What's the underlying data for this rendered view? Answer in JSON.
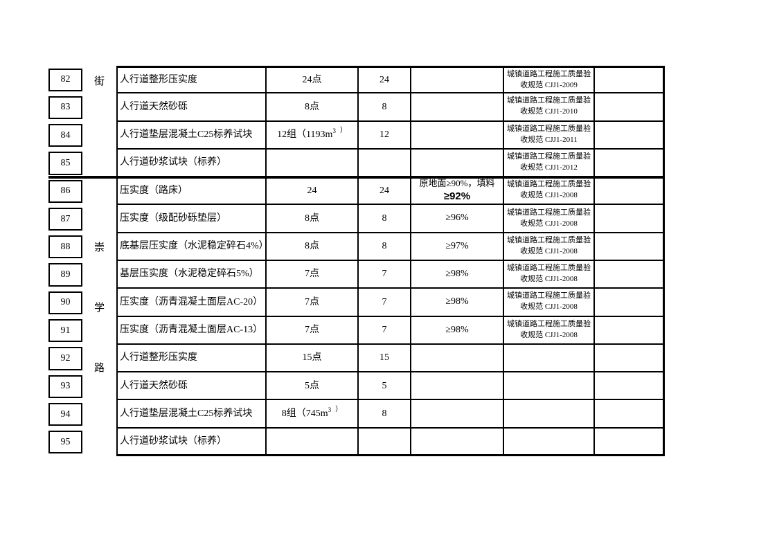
{
  "colors": {
    "background": "#ffffff",
    "text": "#000000",
    "border": "#000000"
  },
  "table": {
    "street_groups": [
      {
        "chars": [
          "街"
        ],
        "start_row": "82",
        "end_row": "85"
      },
      {
        "chars": [
          "崇",
          "学",
          "路"
        ],
        "start_row": "86",
        "end_row": "95"
      }
    ],
    "rows": [
      {
        "no": "82",
        "item": "人行道整形压实度",
        "points": "24点",
        "count": "24",
        "req": "",
        "std": {
          "l1": "城镇道路工程施工质量验",
          "l2": "收规范 CJJ1-2009"
        },
        "remark": ""
      },
      {
        "no": "83",
        "item": "人行道天然砂砾",
        "points": "8点",
        "count": "8",
        "req": "",
        "std": {
          "l1": "城镇道路工程施工质量验",
          "l2": "收规范 CJJ1-2010"
        },
        "remark": ""
      },
      {
        "no": "84",
        "item": "人行道垫层混凝土C25标养试块",
        "points": {
          "pre": "12组（1193m",
          "sup": "3",
          "close": "）"
        },
        "count": "12",
        "req": "",
        "std": {
          "l1": "城镇道路工程施工质量验",
          "l2": "收规范 CJJ1-2011"
        },
        "remark": ""
      },
      {
        "no": "85",
        "item": "人行道砂浆试块（标养）",
        "points": "",
        "count": "",
        "req": "",
        "std": {
          "l1": "城镇道路工程施工质量验",
          "l2": "收规范 CJJ1-2012"
        },
        "remark": ""
      },
      {
        "no": "86",
        "item": "压实度（路床）",
        "points": "24",
        "count": "24",
        "req": {
          "l1": "原地面≥90%，填料",
          "l2": "≥92%"
        },
        "std": {
          "l1": "城镇道路工程施工质量验",
          "l2": "收规范 CJJ1-2008"
        },
        "remark": ""
      },
      {
        "no": "87",
        "item": "压实度（级配砂砾垫层）",
        "points": "8点",
        "count": "8",
        "req": "≥96%",
        "std": {
          "l1": "城镇道路工程施工质量验",
          "l2": "收规范 CJJ1-2008"
        },
        "remark": ""
      },
      {
        "no": "88",
        "item": "底基层压实度（水泥稳定碎石4%）",
        "points": "8点",
        "count": "8",
        "req": "≥97%",
        "std": {
          "l1": "城镇道路工程施工质量验",
          "l2": "收规范 CJJ1-2008"
        },
        "remark": ""
      },
      {
        "no": "89",
        "item": "基层压实度（水泥稳定碎石5%）",
        "points": "7点",
        "count": "7",
        "req": "≥98%",
        "std": {
          "l1": "城镇道路工程施工质量验",
          "l2": "收规范 CJJ1-2008"
        },
        "remark": ""
      },
      {
        "no": "90",
        "item": "压实度（沥青混凝土面层AC-20）",
        "points": "7点",
        "count": "7",
        "req": "≥98%",
        "std": {
          "l1": "城镇道路工程施工质量验",
          "l2": "收规范 CJJ1-2008"
        },
        "remark": ""
      },
      {
        "no": "91",
        "item": "压实度（沥青混凝土面层AC-13）",
        "points": "7点",
        "count": "7",
        "req": "≥98%",
        "std": {
          "l1": "城镇道路工程施工质量验",
          "l2": "收规范 CJJ1-2008"
        },
        "remark": ""
      },
      {
        "no": "92",
        "item": "人行道整形压实度",
        "points": "15点",
        "count": "15",
        "req": "",
        "std": null,
        "remark": ""
      },
      {
        "no": "93",
        "item": "人行道天然砂砾",
        "points": "5点",
        "count": "5",
        "req": "",
        "std": null,
        "remark": ""
      },
      {
        "no": "94",
        "item": "人行道垫层混凝土C25标养试块",
        "points": {
          "pre": "8组（745m",
          "sup": "3",
          "close": "）"
        },
        "count": "8",
        "req": "",
        "std": null,
        "remark": ""
      },
      {
        "no": "95",
        "item": "人行道砂浆试块（标养）",
        "points": "",
        "count": "",
        "req": "",
        "std": null,
        "remark": ""
      }
    ]
  }
}
